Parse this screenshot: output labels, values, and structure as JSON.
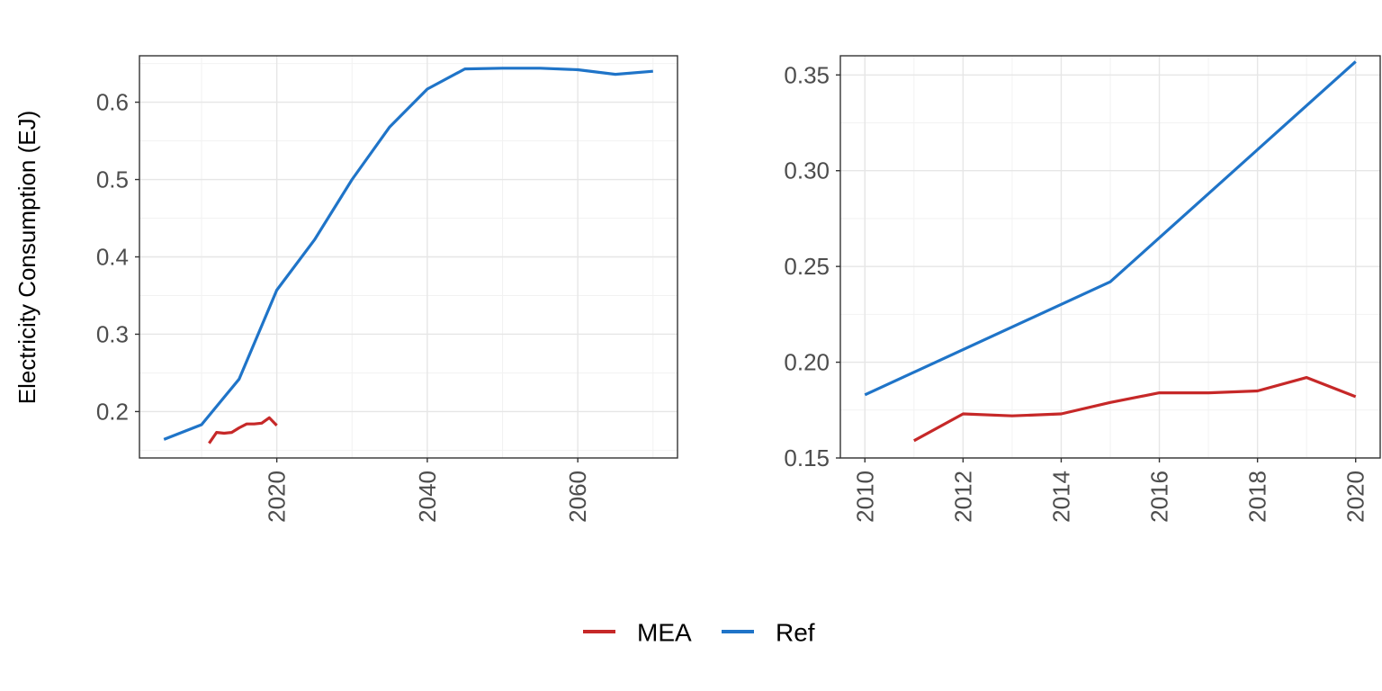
{
  "ylabel": "Electricity Consumption (EJ)",
  "legend": {
    "position": "bottom",
    "items": [
      {
        "name": "MEA",
        "color": "#c62828"
      },
      {
        "name": "Ref",
        "color": "#1f74c8"
      }
    ]
  },
  "chart_data": [
    {
      "type": "line",
      "grid": true,
      "xlim": [
        2005,
        2070
      ],
      "ylim": [
        0.14,
        0.66
      ],
      "x_ticks": [
        2020,
        2040,
        2060
      ],
      "x_minor_ticks": [
        2010,
        2030,
        2050,
        2070
      ],
      "y_ticks": [
        0.2,
        0.3,
        0.4,
        0.5,
        0.6
      ],
      "y_tick_labels": [
        "0.2",
        "0.3",
        "0.4",
        "0.5",
        "0.6"
      ],
      "y_minor_ticks": [
        0.15,
        0.25,
        0.35,
        0.45,
        0.55,
        0.65
      ],
      "series": [
        {
          "name": "MEA",
          "color": "#c62828",
          "x": [
            2011,
            2012,
            2013,
            2014,
            2015,
            2016,
            2017,
            2018,
            2019,
            2020
          ],
          "y": [
            0.159,
            0.173,
            0.172,
            0.173,
            0.179,
            0.184,
            0.184,
            0.185,
            0.192,
            0.182
          ]
        },
        {
          "name": "Ref",
          "color": "#1f74c8",
          "x": [
            2005,
            2010,
            2015,
            2020,
            2025,
            2030,
            2035,
            2040,
            2045,
            2050,
            2055,
            2060,
            2065,
            2070
          ],
          "y": [
            0.164,
            0.183,
            0.242,
            0.357,
            0.422,
            0.5,
            0.568,
            0.617,
            0.643,
            0.644,
            0.644,
            0.642,
            0.636,
            0.64
          ]
        }
      ]
    },
    {
      "type": "line",
      "grid": true,
      "xlim": [
        2010,
        2020
      ],
      "ylim": [
        0.15,
        0.36
      ],
      "x_ticks": [
        2010,
        2012,
        2014,
        2016,
        2018,
        2020
      ],
      "x_minor_ticks": [
        2011,
        2013,
        2015,
        2017,
        2019
      ],
      "y_ticks": [
        0.15,
        0.2,
        0.25,
        0.3,
        0.35
      ],
      "y_tick_labels": [
        "0.15",
        "0.20",
        "0.25",
        "0.30",
        "0.35"
      ],
      "y_minor_ticks": [
        0.175,
        0.225,
        0.275,
        0.325
      ],
      "series": [
        {
          "name": "MEA",
          "color": "#c62828",
          "x": [
            2011,
            2012,
            2013,
            2014,
            2015,
            2016,
            2017,
            2018,
            2019,
            2020
          ],
          "y": [
            0.159,
            0.173,
            0.172,
            0.173,
            0.179,
            0.184,
            0.184,
            0.185,
            0.192,
            0.182
          ]
        },
        {
          "name": "Ref",
          "color": "#1f74c8",
          "x": [
            2010,
            2015,
            2020
          ],
          "y": [
            0.183,
            0.242,
            0.357
          ]
        }
      ]
    }
  ]
}
